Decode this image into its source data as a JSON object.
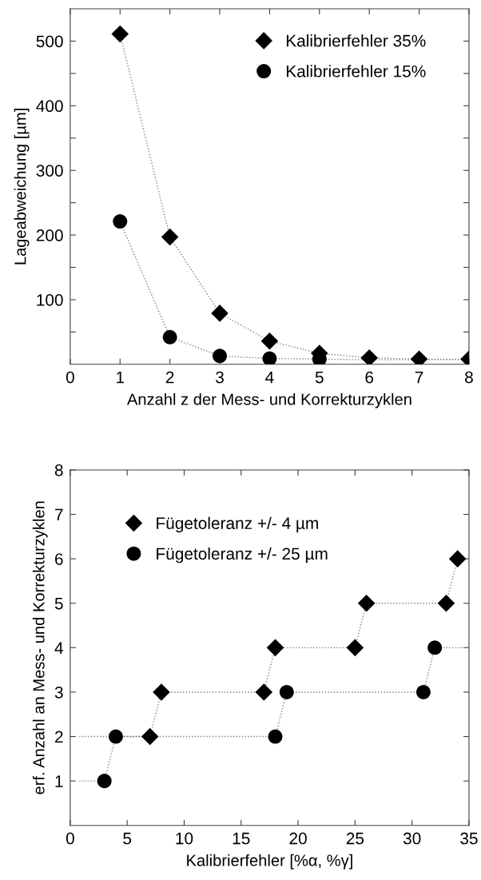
{
  "chart_data": [
    {
      "type": "scatter",
      "xlabel": "Anzahl z der Mess- und Korrekturzyklen",
      "ylabel": "Lageabweichung [µm]",
      "xlim": [
        0,
        8
      ],
      "ylim": [
        0,
        550
      ],
      "xticks": [
        0,
        1,
        2,
        3,
        4,
        5,
        6,
        7,
        8
      ],
      "yticks": [
        {
          "value": 50,
          "label": null
        },
        100,
        {
          "value": 150,
          "label": null
        },
        200,
        {
          "value": 250,
          "label": null
        },
        300,
        {
          "value": 350,
          "label": null
        },
        400,
        {
          "value": 450,
          "label": null
        },
        500
      ],
      "legend": "top right",
      "grid": false,
      "series": [
        {
          "type": "line",
          "color": "#808080",
          "line_style": "dotted",
          "marker": "none",
          "x": [
            1,
            2,
            3,
            4,
            5,
            6,
            7,
            8
          ],
          "values": [
            511,
            197,
            79,
            36,
            17,
            10,
            8,
            8
          ]
        },
        {
          "type": "line",
          "color": "#808080",
          "line_style": "dotted",
          "marker": "none",
          "x": [
            1,
            2,
            3,
            4,
            5,
            6,
            7,
            8
          ],
          "values": [
            221,
            42,
            13,
            9,
            8,
            7,
            7,
            7
          ]
        },
        {
          "name": "Kalibrierfehler 35%",
          "color": "#000000",
          "marker": "diamond",
          "x": [
            1,
            2,
            3,
            4,
            5,
            6,
            7,
            8
          ],
          "values": [
            511,
            197,
            79,
            36,
            17,
            10,
            8,
            8
          ]
        },
        {
          "name": "Kalibrierfehler 15%",
          "color": "#000000",
          "marker": "circle",
          "x": [
            1,
            2,
            3,
            4,
            5
          ],
          "values": [
            221,
            42,
            13,
            9,
            8
          ]
        }
      ]
    },
    {
      "type": "scatter",
      "xlabel": "Kalibrierfehler [%α, %γ]",
      "ylabel": "erf. Anzahl an Mess- und Korrekturzyklen",
      "xlim": [
        0,
        35
      ],
      "ylim": [
        0,
        8
      ],
      "xticks": [
        0,
        5,
        10,
        15,
        20,
        25,
        30,
        35
      ],
      "yticks": [
        1,
        2,
        3,
        4,
        5,
        6,
        7,
        8
      ],
      "legend": "top left",
      "grid": false,
      "series": [
        {
          "type": "line",
          "color": "#808080",
          "line_style": "dotted",
          "marker": "none",
          "x": [
            0.8,
            7,
            8,
            17,
            18,
            25,
            26,
            33,
            34,
            35
          ],
          "values": [
            2,
            2,
            3,
            3,
            4,
            4,
            5,
            5,
            6,
            6
          ]
        },
        {
          "type": "line",
          "color": "#808080",
          "line_style": "dotted",
          "marker": "none",
          "x": [
            0.8,
            3,
            4,
            18,
            19,
            31,
            32,
            35
          ],
          "values": [
            1,
            1,
            2,
            2,
            3,
            3,
            4,
            4
          ]
        },
        {
          "name": "Fügetoleranz +/- 4 µm",
          "color": "#000000",
          "marker": "diamond",
          "x": [
            7,
            8,
            17,
            18,
            25,
            26,
            33,
            34
          ],
          "values": [
            2,
            3,
            3,
            4,
            4,
            5,
            5,
            6
          ]
        },
        {
          "name": "Fügetoleranz +/- 25 µm",
          "color": "#000000",
          "marker": "circle",
          "x": [
            3,
            4,
            18,
            19,
            31,
            32
          ],
          "values": [
            1,
            2,
            2,
            3,
            3,
            4
          ]
        }
      ]
    }
  ]
}
